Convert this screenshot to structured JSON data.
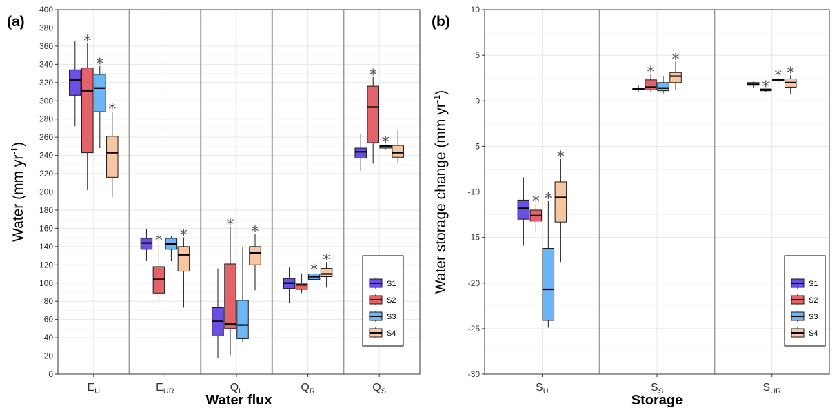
{
  "chart_data": [
    {
      "type": "boxplot",
      "panel_label": "(a)",
      "xlabel": "Water flux",
      "ylabel": "Water (mm yr",
      "ylabel_sup": "-1",
      "ylabel_end": ")",
      "ylim": [
        0,
        400
      ],
      "yticks": [
        0,
        20,
        40,
        60,
        80,
        100,
        120,
        140,
        160,
        180,
        200,
        220,
        240,
        260,
        280,
        300,
        320,
        340,
        360,
        380,
        400
      ],
      "grid": true,
      "legend": "bottom-right",
      "categories": [
        {
          "main": "E",
          "sub": "U"
        },
        {
          "main": "E",
          "sub": "UR"
        },
        {
          "main": "Q",
          "sub": "L"
        },
        {
          "main": "Q",
          "sub": "R"
        },
        {
          "main": "Q",
          "sub": "S"
        }
      ],
      "series_names": [
        "S1",
        "S2",
        "S3",
        "S4"
      ],
      "boxes": [
        [
          {
            "min": 272,
            "q1": 306,
            "med": 323,
            "q3": 334,
            "max": 366,
            "sig": false
          },
          {
            "min": 202,
            "q1": 243,
            "med": 311,
            "q3": 336,
            "max": 363,
            "sig": true
          },
          {
            "min": 248,
            "q1": 288,
            "med": 314,
            "q3": 329,
            "max": 338,
            "sig": true
          },
          {
            "min": 194,
            "q1": 216,
            "med": 243,
            "q3": 261,
            "max": 288,
            "sig": true
          }
        ],
        [
          {
            "min": 124,
            "q1": 137,
            "med": 144,
            "q3": 149,
            "max": 159,
            "sig": false
          },
          {
            "min": 80,
            "q1": 89,
            "med": 104,
            "q3": 118,
            "max": 144,
            "sig": true
          },
          {
            "min": 124,
            "q1": 137,
            "med": 143,
            "q3": 149,
            "max": 152,
            "sig": false
          },
          {
            "min": 73,
            "q1": 113,
            "med": 131,
            "q3": 140,
            "max": 150,
            "sig": true
          }
        ],
        [
          {
            "min": 18,
            "q1": 42,
            "med": 58,
            "q3": 73,
            "max": 116,
            "sig": false
          },
          {
            "min": 21,
            "q1": 50,
            "med": 55,
            "q3": 121,
            "max": 162,
            "sig": true
          },
          {
            "min": 35,
            "q1": 39,
            "med": 54,
            "q3": 81,
            "max": 139,
            "sig": false
          },
          {
            "min": 92,
            "q1": 120,
            "med": 133,
            "q3": 140,
            "max": 154,
            "sig": true
          }
        ],
        [
          {
            "min": 78,
            "q1": 94,
            "med": 100,
            "q3": 105,
            "max": 117,
            "sig": false
          },
          {
            "min": 89,
            "q1": 93,
            "med": 98,
            "q3": 100,
            "max": 110,
            "sig": false
          },
          {
            "min": 102,
            "q1": 104,
            "med": 107,
            "q3": 110,
            "max": 112,
            "sig": true
          },
          {
            "min": 95,
            "q1": 107,
            "med": 110,
            "q3": 116,
            "max": 123,
            "sig": true
          }
        ],
        [
          {
            "min": 223,
            "q1": 237,
            "med": 244,
            "q3": 248,
            "max": 264,
            "sig": false
          },
          {
            "min": 231,
            "q1": 254,
            "med": 293,
            "q3": 316,
            "max": 326,
            "sig": true
          },
          {
            "min": 247,
            "q1": 248,
            "med": 250,
            "q3": 251,
            "max": 252,
            "sig": true
          },
          {
            "min": 232,
            "q1": 238,
            "med": 243,
            "q3": 251,
            "max": 268,
            "sig": false
          }
        ]
      ]
    },
    {
      "type": "boxplot",
      "panel_label": "(b)",
      "xlabel": "Storage",
      "ylabel": "Water storage change (mm yr",
      "ylabel_sup": "-1",
      "ylabel_end": ")",
      "ylim": [
        -30,
        10
      ],
      "yticks": [
        -30,
        -25,
        -20,
        -15,
        -10,
        -5,
        0,
        5,
        10
      ],
      "grid": true,
      "legend": "bottom-right",
      "categories": [
        {
          "main": "S",
          "sub": "U"
        },
        {
          "main": "S",
          "sub": "S"
        },
        {
          "main": "S",
          "sub": "UR"
        }
      ],
      "series_names": [
        "S1",
        "S2",
        "S3",
        "S4"
      ],
      "boxes": [
        [
          {
            "min": -15.9,
            "q1": -13.0,
            "med": -11.8,
            "q3": -10.9,
            "max": -8.4,
            "sig": false
          },
          {
            "min": -14.4,
            "q1": -13.2,
            "med": -12.6,
            "q3": -12.0,
            "max": -11.3,
            "sig": true
          },
          {
            "min": -24.9,
            "q1": -24.1,
            "med": -20.7,
            "q3": -16.2,
            "max": -11.0,
            "sig": true
          },
          {
            "min": -17.7,
            "q1": -13.3,
            "med": -10.6,
            "q3": -8.9,
            "max": -6.4,
            "sig": true
          }
        ],
        [
          {
            "min": 1.0,
            "q1": 1.2,
            "med": 1.3,
            "q3": 1.4,
            "max": 1.7,
            "sig": false
          },
          {
            "min": 1.0,
            "q1": 1.2,
            "med": 1.5,
            "q3": 2.3,
            "max": 2.9,
            "sig": true
          },
          {
            "min": 0.8,
            "q1": 1.1,
            "med": 1.4,
            "q3": 2.0,
            "max": 2.7,
            "sig": false
          },
          {
            "min": 1.2,
            "q1": 2.0,
            "med": 2.7,
            "q3": 3.1,
            "max": 4.3,
            "sig": true
          }
        ],
        [
          {
            "min": 1.4,
            "q1": 1.7,
            "med": 1.8,
            "q3": 2.0,
            "max": 2.1,
            "sig": false
          },
          {
            "min": 1.0,
            "q1": 1.1,
            "med": 1.2,
            "q3": 1.3,
            "max": 1.3,
            "sig": true
          },
          {
            "min": 2.0,
            "q1": 2.2,
            "med": 2.3,
            "q3": 2.4,
            "max": 2.5,
            "sig": true
          },
          {
            "min": 0.7,
            "q1": 1.5,
            "med": 2.0,
            "q3": 2.4,
            "max": 2.8,
            "sig": true
          }
        ]
      ]
    }
  ],
  "colors": {
    "S1": "#6a4fe0",
    "S2": "#e2636c",
    "S3": "#6cb6f5",
    "S4": "#f8c6a0",
    "outline": "#1a1a1a",
    "grid": "#e6e6e6",
    "separator": "#9a9a9a",
    "star": "#555555"
  },
  "significance_symbol": "*"
}
